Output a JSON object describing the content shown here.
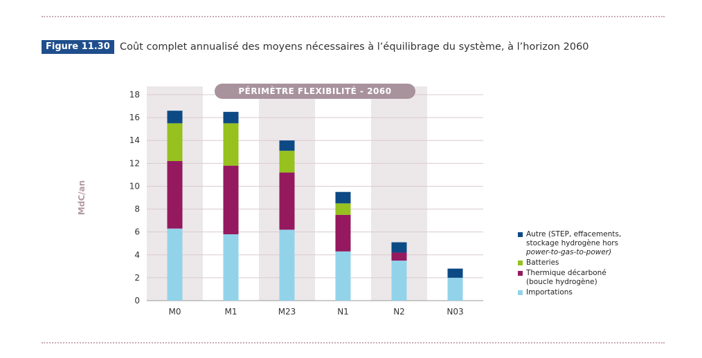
{
  "figure": {
    "label": "Figure 11.30",
    "title": "Coût complet annualisé des moyens nécessaires à l’équilibrage du système, à l’horizon 2060"
  },
  "colors": {
    "figure_label_bg": "#1f4e8c",
    "banner_bg": "#a8929c",
    "band_bg": "#ece8e9"
  },
  "chart_data": {
    "type": "bar",
    "stacked": true,
    "banner": "PÉRIMÈTRE FLEXIBILITÉ - 2060",
    "ylabel": "MdC/an",
    "xlabel": "",
    "ylim": [
      0,
      18
    ],
    "yticks": [
      0,
      2,
      4,
      6,
      8,
      10,
      12,
      14,
      16,
      18
    ],
    "grid": true,
    "legend_position": "right",
    "categories": [
      "M0",
      "M1",
      "M23",
      "N1",
      "N2",
      "N03"
    ],
    "shaded_categories": [
      "M0",
      "M23",
      "N2"
    ],
    "series": [
      {
        "name": "Importations",
        "color": "#92d3ea",
        "values": [
          6.3,
          5.8,
          6.2,
          4.3,
          3.5,
          2.0
        ]
      },
      {
        "name": "Thermique décarboné (boucle hydrogène)",
        "color": "#95195f",
        "values": [
          5.9,
          6.0,
          5.0,
          3.2,
          0.7,
          0.0
        ]
      },
      {
        "name": "Batteries",
        "color": "#96c11f",
        "values": [
          3.3,
          3.7,
          1.9,
          1.0,
          0.0,
          0.0
        ]
      },
      {
        "name": "Autre (STEP, effacements, stockage hydrogène hors power-to-gas-to-power)",
        "color": "#0d4a85",
        "values": [
          1.1,
          1.0,
          0.9,
          1.0,
          0.9,
          0.8
        ]
      }
    ]
  },
  "legend": [
    {
      "lines": [
        "Autre (STEP, effacements,",
        "stockage hydrogène hors"
      ],
      "italic_line": "power-to-gas-to-power)",
      "color": "#0d4a85"
    },
    {
      "lines": [
        "Batteries"
      ],
      "color": "#96c11f"
    },
    {
      "lines": [
        "Thermique décarboné",
        "(boucle hydrogène)"
      ],
      "color": "#95195f"
    },
    {
      "lines": [
        "Importations"
      ],
      "color": "#92d3ea"
    }
  ]
}
